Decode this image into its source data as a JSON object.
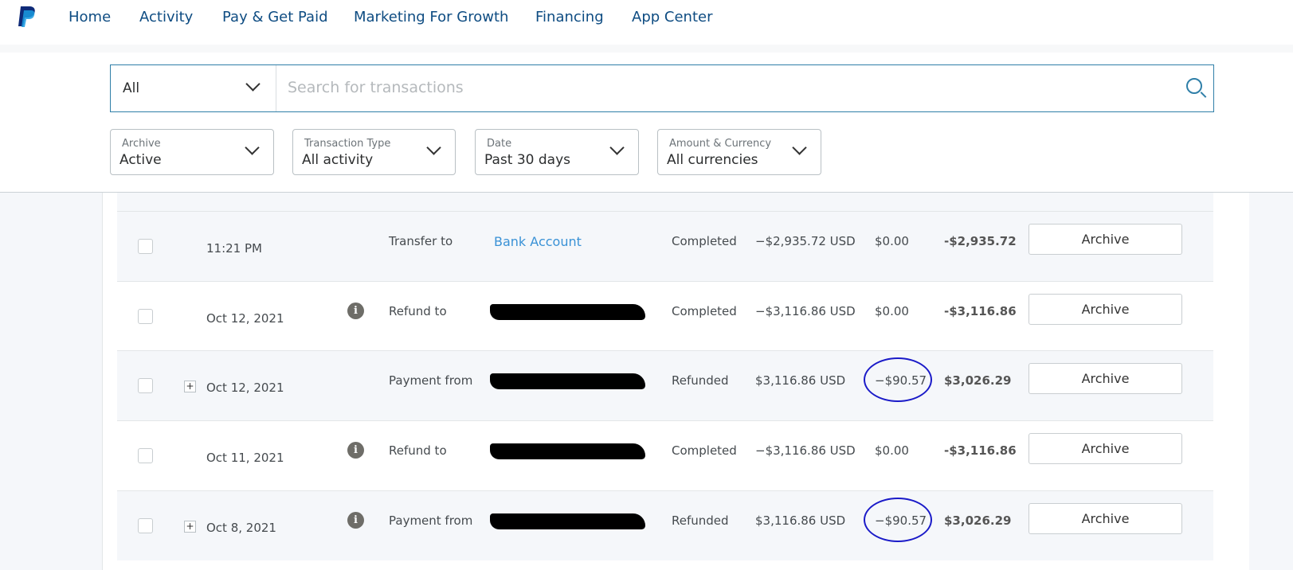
{
  "nav": {
    "items": [
      "Home",
      "Activity",
      "Pay & Get Paid",
      "Marketing For Growth",
      "Financing",
      "App Center"
    ]
  },
  "search": {
    "scope": "All",
    "placeholder": "Search for transactions"
  },
  "filters": [
    {
      "label": "Archive",
      "value": "Active"
    },
    {
      "label": "Transaction Type",
      "value": "All activity"
    },
    {
      "label": "Date",
      "value": "Past 30 days"
    },
    {
      "label": "Amount & Currency",
      "value": "All currencies"
    }
  ],
  "colors": {
    "accent": "#0e4c82",
    "link": "#3a92d6",
    "annotation": "#1a1ac8"
  },
  "rows": [
    {
      "date": "11:21 PM",
      "type": "Transfer to",
      "name": "Bank Account",
      "status": "Completed",
      "amount": "−$2,935.72 USD",
      "fee": "$0.00",
      "net": "-$2,935.72",
      "action": "Archive"
    },
    {
      "date": "Oct 12, 2021",
      "type": "Refund to",
      "name": "[redacted]",
      "status": "Completed",
      "amount": "−$3,116.86 USD",
      "fee": "$0.00",
      "net": "-$3,116.86",
      "action": "Archive"
    },
    {
      "date": "Oct 12, 2021",
      "type": "Payment from",
      "name": "[redacted]",
      "status": "Refunded",
      "amount": "$3,116.86 USD",
      "fee": "−$90.57",
      "net": "$3,026.29",
      "action": "Archive"
    },
    {
      "date": "Oct 11, 2021",
      "type": "Refund to",
      "name": "[redacted]",
      "status": "Completed",
      "amount": "−$3,116.86 USD",
      "fee": "$0.00",
      "net": "-$3,116.86",
      "action": "Archive"
    },
    {
      "date": "Oct 8, 2021",
      "type": "Payment from",
      "name": "[redacted]",
      "status": "Refunded",
      "amount": "$3,116.86 USD",
      "fee": "−$90.57",
      "net": "$3,026.29",
      "action": "Archive"
    }
  ]
}
